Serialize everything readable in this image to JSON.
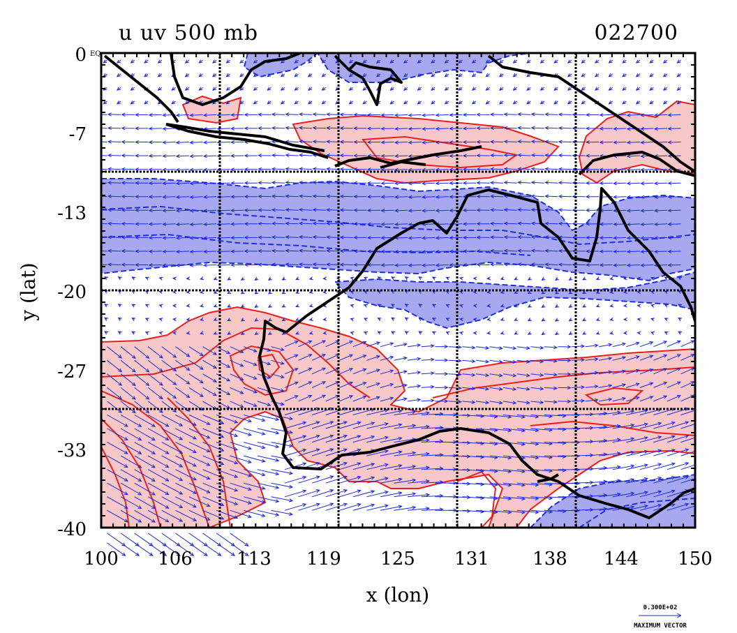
{
  "chart_data": {
    "type": "contour-vector-map",
    "title_left": "u  uv 500 mb",
    "title_right": "022700",
    "xlabel": "x (lon)",
    "ylabel": "y (lat)",
    "xlim": [
      100,
      150
    ],
    "ylim": [
      -40,
      0
    ],
    "x_ticks": [
      "100",
      "106",
      "113",
      "119",
      "125",
      "131",
      "138",
      "144",
      "150"
    ],
    "y_ticks": [
      "0",
      "-7",
      "-13",
      "-20",
      "-27",
      "-33",
      "-40"
    ],
    "y_top_suffix": "EQ",
    "grid_lines_lon": [
      110,
      120,
      130,
      140
    ],
    "grid_lines_lat": [
      -10,
      -20,
      -30
    ],
    "vector_key": {
      "value_text": "0.300E+02",
      "label": "MAXIMUM VECTOR"
    },
    "colors": {
      "positive_fill": "#f8c8c8",
      "positive_contour": "#e8201c",
      "negative_fill": "#a8a8f0",
      "negative_contour": "#2030d8",
      "vectors": "#1a28e0",
      "coast": "#000000"
    },
    "bands": [
      {
        "sign": "negative",
        "lat_from": -2,
        "lat_to": 0
      },
      {
        "sign": "positive",
        "lat_from": -10,
        "lat_to": -5
      },
      {
        "sign": "negative",
        "lat_from": -18,
        "lat_to": -10
      },
      {
        "sign": "negative",
        "lat_from": -23,
        "lat_to": -20
      },
      {
        "sign": "positive",
        "lat_from": -36,
        "lat_to": -22
      },
      {
        "sign": "negative",
        "lat_from": -40,
        "lat_to": -36
      }
    ]
  }
}
